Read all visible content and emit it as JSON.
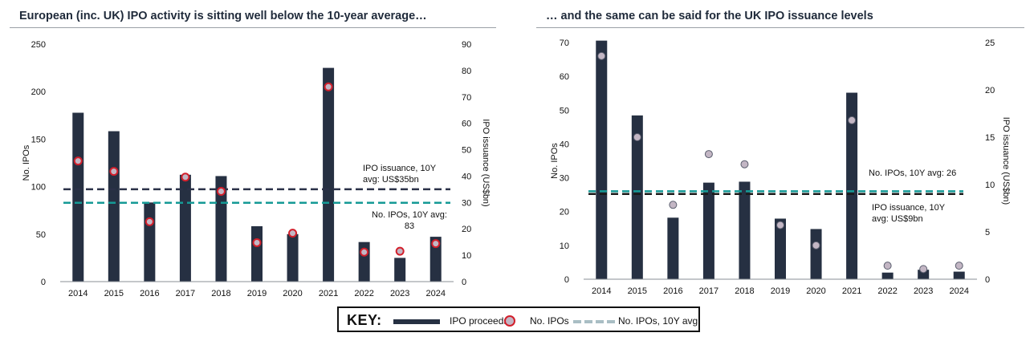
{
  "colors": {
    "bar": "#263042",
    "dot_fill": "#c3b6c4",
    "dot_stroke_left": "#d21f2b",
    "dot_stroke_right": "#5a5e6e",
    "teal": "#159a96",
    "navy_dash": "#2b3148",
    "black_dash": "#1a1a1a"
  },
  "chart_data": [
    {
      "type": "bar",
      "title": "European (inc. UK) IPO activity is sitting well below the 10-year average…",
      "categories": [
        "2014",
        "2015",
        "2016",
        "2017",
        "2018",
        "2019",
        "2020",
        "2021",
        "2022",
        "2023",
        "2024"
      ],
      "series": [
        {
          "name": "IPO proceeds",
          "axis": "right",
          "values": [
            64,
            57,
            30,
            40.5,
            40,
            21,
            18,
            81,
            15,
            9,
            17
          ]
        },
        {
          "name": "No. IPOs",
          "axis": "left",
          "values": [
            127,
            116,
            63,
            110,
            95,
            41,
            51,
            205,
            31,
            32,
            40
          ]
        }
      ],
      "ylabel": "No. IPOs",
      "y2label": "IPO issuance (US$bn)",
      "ylim": [
        0,
        250
      ],
      "yticks": [
        0,
        50,
        100,
        150,
        200,
        250
      ],
      "y2lim": [
        0,
        90
      ],
      "y2ticks": [
        0,
        10,
        20,
        30,
        40,
        50,
        60,
        70,
        80,
        90
      ],
      "reference_lines": [
        {
          "name": "IPO issuance, 10Y avg",
          "axis": "right",
          "value": 35,
          "style": "navy-dashed"
        },
        {
          "name": "No. IPOs, 10Y avg",
          "axis": "left",
          "value": 83,
          "style": "teal-dashed"
        }
      ],
      "annotations": {
        "issuance_avg": [
          "IPO issuance, 10Y",
          "avg: US$35bn"
        ],
        "ipos_avg": [
          "No. IPOs, 10Y avg:",
          "83"
        ]
      }
    },
    {
      "type": "bar",
      "title": "… and the same can be said for the UK IPO issuance levels",
      "categories": [
        "2014",
        "2015",
        "2016",
        "2017",
        "2018",
        "2019",
        "2020",
        "2021",
        "2022",
        "2023",
        "2024"
      ],
      "series": [
        {
          "name": "IPO proceeds",
          "axis": "right",
          "values": [
            25.2,
            17.3,
            6.5,
            10.2,
            10.3,
            6.4,
            5.3,
            19.7,
            0.7,
            1.0,
            0.8
          ]
        },
        {
          "name": "No. IPOs",
          "axis": "left",
          "values": [
            66,
            42,
            22,
            37,
            34,
            16,
            10,
            47,
            4,
            3,
            4
          ]
        }
      ],
      "ylabel": "No. IPOs",
      "y2label": "IPO issuance (US$bn)",
      "ylim": [
        0,
        70
      ],
      "yticks": [
        0,
        10,
        20,
        30,
        40,
        50,
        60,
        70
      ],
      "y2lim": [
        0,
        25
      ],
      "y2ticks": [
        0,
        5,
        10,
        15,
        20,
        25
      ],
      "reference_lines": [
        {
          "name": "IPO issuance, 10Y avg",
          "axis": "right",
          "value": 9,
          "style": "black-dashed"
        },
        {
          "name": "No. IPOs, 10Y avg",
          "axis": "left",
          "value": 26,
          "style": "teal-dashed"
        }
      ],
      "annotations": {
        "ipos_avg": [
          "No. IPOs, 10Y avg: 26"
        ],
        "issuance_avg": [
          "IPO issuance, 10Y",
          "avg: US$9bn"
        ]
      }
    }
  ],
  "key": {
    "label": "KEY:",
    "items": [
      "IPO proceeds",
      "No. IPOs",
      "No. IPOs, 10Y avg:"
    ]
  }
}
